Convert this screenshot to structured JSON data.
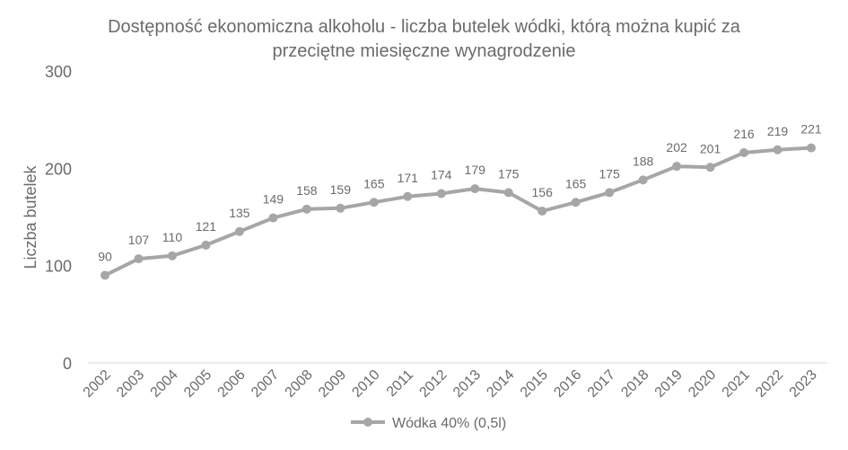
{
  "chart_data": {
    "type": "line",
    "title_line1": "Dostępność ekonomiczna alkoholu - liczba butelek wódki, którą można kupić za",
    "title_line2": "przeciętne miesięczne wynagrodzenie",
    "ylabel": "Liczba butelek",
    "xlabel": "",
    "ylim": [
      0,
      300
    ],
    "yticks": [
      0,
      100,
      200,
      300
    ],
    "grid": false,
    "legend_position": "bottom",
    "categories": [
      "2002",
      "2003",
      "2004",
      "2005",
      "2006",
      "2007",
      "2008",
      "2009",
      "2010",
      "2011",
      "2012",
      "2013",
      "2014",
      "2015",
      "2016",
      "2017",
      "2018",
      "2019",
      "2020",
      "2021",
      "2022",
      "2023"
    ],
    "series": [
      {
        "name": "Wódka 40% (0,5l)",
        "color": "#a6a6a6",
        "values": [
          90,
          107,
          110,
          121,
          135,
          149,
          158,
          159,
          165,
          171,
          174,
          179,
          175,
          156,
          165,
          175,
          188,
          202,
          201,
          216,
          219,
          221
        ]
      }
    ]
  }
}
